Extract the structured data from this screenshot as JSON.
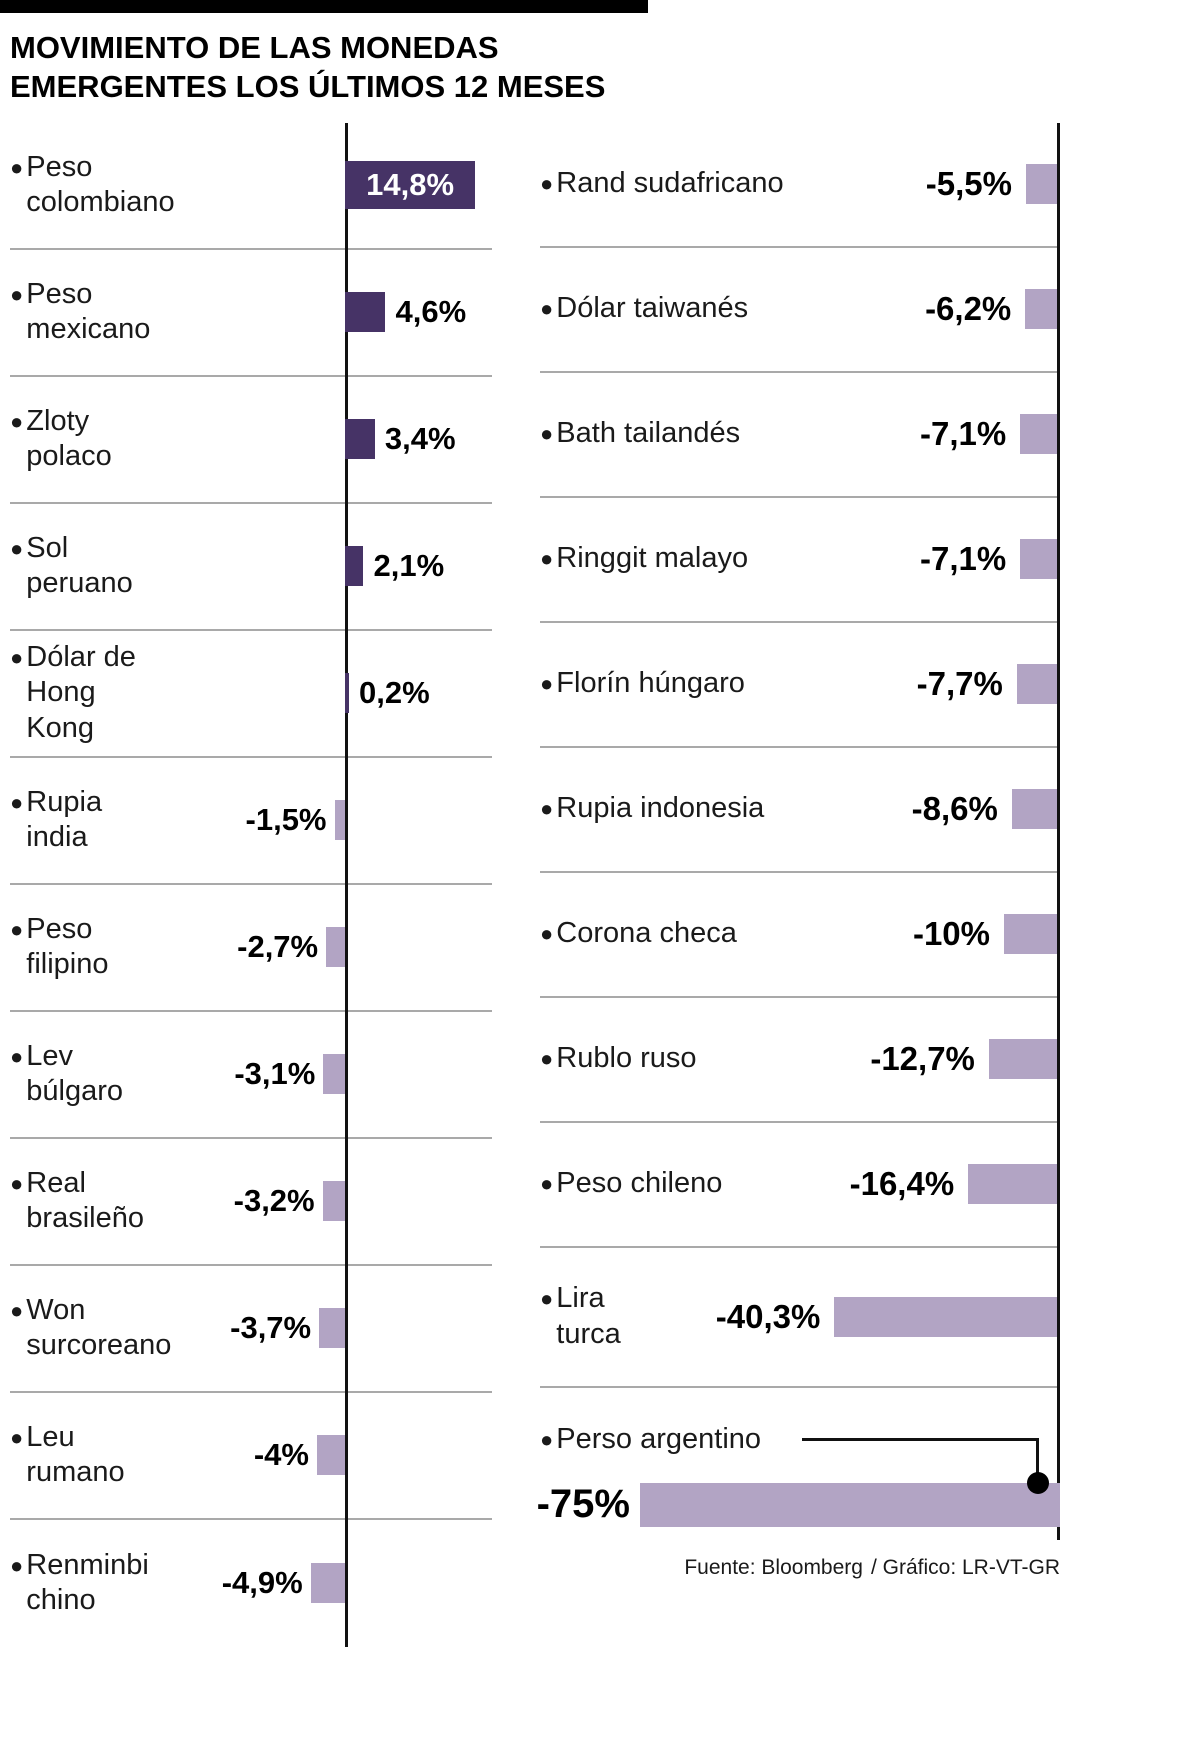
{
  "title": {
    "line1": "MOVIMIENTO DE LAS MONEDAS",
    "line2": "EMERGENTES LOS ÚLTIMOS 12 MESES"
  },
  "icons": {
    "bullet": "●"
  },
  "colors": {
    "dark_purple": "#463366",
    "light_purple": "#b2a4c4",
    "axis_black": "#111111",
    "separator_gray": "#a9a9a9"
  },
  "footer": {
    "source": "Fuente: Bloomberg",
    "credit": "/ Gráfico: LR-VT-GR"
  },
  "chart_data": {
    "type": "bar",
    "title": "Movimiento de las monedas emergentes los últimos 12 meses",
    "unit": "%",
    "orientation": "horizontal",
    "positive_color": "#463366",
    "negative_color": "#b2a4c4",
    "legend": "none",
    "grid": false,
    "left": [
      {
        "label": "Peso colombiano",
        "display": "14,8%",
        "value": 14.8
      },
      {
        "label": "Peso mexicano",
        "display": "4,6%",
        "value": 4.6
      },
      {
        "label": "Zloty polaco",
        "display": "3,4%",
        "value": 3.4
      },
      {
        "label": "Sol peruano",
        "display": "2,1%",
        "value": 2.1
      },
      {
        "label": "Dólar de Hong Kong",
        "display": "0,2%",
        "value": 0.2
      },
      {
        "label": "Rupia india",
        "display": "-1,5%",
        "value": -1.5
      },
      {
        "label": "Peso filipino",
        "display": "-2,7%",
        "value": -2.7
      },
      {
        "label": "Lev búlgaro",
        "display": "-3,1%",
        "value": -3.1
      },
      {
        "label": "Real brasileño",
        "display": "-3,2%",
        "value": -3.2
      },
      {
        "label": "Won surcoreano",
        "display": "-3,7%",
        "value": -3.7
      },
      {
        "label": "Leu rumano",
        "display": "-4%",
        "value": -4
      },
      {
        "label": "Renminbi chino",
        "display": "-4,9%",
        "value": -4.9
      }
    ],
    "right": [
      {
        "label": "Rand sudafricano",
        "display": "-5,5%",
        "value": -5.5
      },
      {
        "label": "Dólar taiwanés",
        "display": "-6,2%",
        "value": -6.2
      },
      {
        "label": "Bath tailandés",
        "display": "-7,1%",
        "value": -7.1
      },
      {
        "label": "Ringgit malayo",
        "display": "-7,1%",
        "value": -7.1
      },
      {
        "label": "Florín húngaro",
        "display": "-7,7%",
        "value": -7.7
      },
      {
        "label": "Rupia indonesia",
        "display": "-8,6%",
        "value": -8.6
      },
      {
        "label": "Corona checa",
        "display": "-10%",
        "value": -10
      },
      {
        "label": "Rublo ruso",
        "display": "-12,7%",
        "value": -12.7
      },
      {
        "label": "Peso chileno",
        "display": "-16,4%",
        "value": -16.4
      },
      {
        "label": "Lira turca",
        "display": "-40,3%",
        "value": -40.3
      },
      {
        "label": "Perso argentino",
        "display": "-75%",
        "value": -75
      }
    ]
  }
}
